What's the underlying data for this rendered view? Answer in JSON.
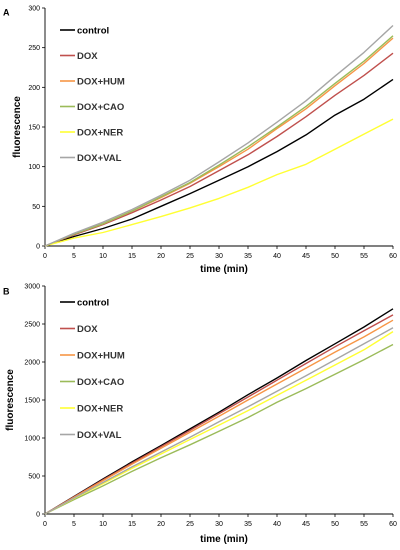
{
  "chart_data": [
    {
      "panel_label": "A",
      "type": "line",
      "xlabel": "time (min)",
      "ylabel": "fluorescence",
      "xlim": [
        0,
        60
      ],
      "ylim": [
        0,
        300
      ],
      "xticks": [
        "0",
        "5",
        "10",
        "15",
        "20",
        "25",
        "30",
        "35",
        "40",
        "45",
        "50",
        "55",
        "60"
      ],
      "yticks": [
        "0",
        "50",
        "100",
        "150",
        "200",
        "250",
        "300"
      ],
      "legend_position": "top-left",
      "x": [
        0,
        5,
        10,
        15,
        20,
        25,
        30,
        35,
        40,
        45,
        50,
        55,
        60
      ],
      "series": [
        {
          "name": "control",
          "color": "#000000",
          "values": [
            0,
            12,
            22,
            34,
            50,
            66,
            83,
            100,
            119,
            140,
            165,
            185,
            210
          ]
        },
        {
          "name": "DOX",
          "color": "#c0504d",
          "values": [
            0,
            14,
            27,
            42,
            58,
            75,
            95,
            115,
            138,
            163,
            190,
            215,
            243
          ]
        },
        {
          "name": "DOX+HUM",
          "color": "#f79646",
          "values": [
            0,
            15,
            28,
            44,
            61,
            79,
            100,
            122,
            148,
            173,
            202,
            230,
            262
          ]
        },
        {
          "name": "DOX+CAO",
          "color": "#9bbb59",
          "values": [
            0,
            15,
            28,
            44,
            62,
            80,
            102,
            125,
            150,
            176,
            205,
            233,
            265
          ]
        },
        {
          "name": "DOX+NER",
          "color": "#ffff33",
          "values": [
            0,
            10,
            17,
            27,
            37,
            48,
            60,
            74,
            90,
            103,
            122,
            141,
            160
          ]
        },
        {
          "name": "DOX+VAL",
          "color": "#a6a6a6",
          "values": [
            0,
            16,
            30,
            46,
            64,
            83,
            106,
            130,
            156,
            183,
            214,
            244,
            278
          ]
        }
      ]
    },
    {
      "panel_label": "B",
      "type": "line",
      "xlabel": "time (min)",
      "ylabel": "fluorescence",
      "xlim": [
        0,
        60
      ],
      "ylim": [
        0,
        3000
      ],
      "xticks": [
        "0",
        "5",
        "10",
        "15",
        "20",
        "25",
        "30",
        "35",
        "40",
        "45",
        "50",
        "55",
        "60"
      ],
      "yticks": [
        "0",
        "500",
        "1000",
        "1500",
        "2000",
        "2500",
        "3000"
      ],
      "legend_position": "top-left",
      "x": [
        0,
        5,
        10,
        15,
        20,
        25,
        30,
        35,
        40,
        45,
        50,
        55,
        60
      ],
      "series": [
        {
          "name": "control",
          "color": "#000000",
          "values": [
            0,
            230,
            460,
            685,
            900,
            1120,
            1340,
            1570,
            1790,
            2020,
            2240,
            2460,
            2700
          ]
        },
        {
          "name": "DOX",
          "color": "#c0504d",
          "values": [
            0,
            225,
            450,
            670,
            885,
            1100,
            1320,
            1540,
            1760,
            1980,
            2200,
            2410,
            2620
          ]
        },
        {
          "name": "DOX+HUM",
          "color": "#f79646",
          "values": [
            0,
            220,
            440,
            655,
            865,
            1075,
            1285,
            1500,
            1710,
            1920,
            2130,
            2330,
            2550
          ]
        },
        {
          "name": "DOX+CAO",
          "color": "#9bbb59",
          "values": [
            0,
            190,
            370,
            560,
            740,
            910,
            1090,
            1270,
            1470,
            1650,
            1840,
            2030,
            2230
          ]
        },
        {
          "name": "DOX+NER",
          "color": "#ffff33",
          "values": [
            0,
            205,
            400,
            600,
            790,
            980,
            1170,
            1360,
            1560,
            1760,
            1960,
            2160,
            2400
          ]
        },
        {
          "name": "DOX+VAL",
          "color": "#a6a6a6",
          "values": [
            0,
            210,
            415,
            620,
            815,
            1010,
            1215,
            1410,
            1615,
            1820,
            2030,
            2240,
            2450
          ]
        }
      ]
    }
  ]
}
